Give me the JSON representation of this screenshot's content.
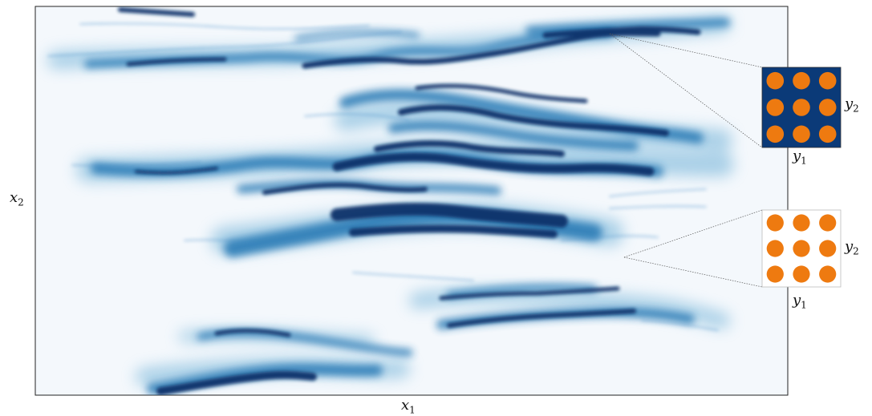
{
  "labels": {
    "x1": {
      "base": "x",
      "sub": "1"
    },
    "x2": {
      "base": "x",
      "sub": "2"
    },
    "inset_dark_y1": {
      "base": "y",
      "sub": "1"
    },
    "inset_dark_y2": {
      "base": "y",
      "sub": "2"
    },
    "inset_light_y1": {
      "base": "y",
      "sub": "1"
    },
    "inset_light_y2": {
      "base": "y",
      "sub": "2"
    }
  },
  "colors": {
    "domain_background": "#f4f8fc",
    "flow_dark": "#08306b",
    "flow_mid": "#2171b5",
    "flow_light": "#9ecae1",
    "inset_dark_bg": "#0b3a78",
    "inset_light_bg": "#ffffff",
    "inclusion": "#ee7a10"
  },
  "insets": {
    "dark": {
      "rows": 3,
      "cols": 3
    },
    "light": {
      "rows": 3,
      "cols": 3
    }
  }
}
